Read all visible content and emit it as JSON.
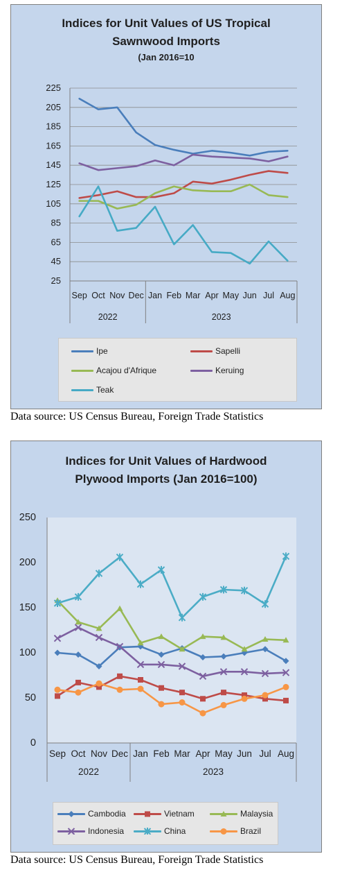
{
  "chart_data": [
    {
      "type": "line",
      "title": "Indices for Unit Values of US Tropical Sawnwood Imports",
      "subtitle": "(Jan 2016=10",
      "categories": [
        "Sep",
        "Oct",
        "Nov",
        "Dec",
        "Jan",
        "Feb",
        "Mar",
        "Apr",
        "May",
        "Jun",
        "Jul",
        "Aug"
      ],
      "year_groups": [
        {
          "label": "2022",
          "count": 4
        },
        {
          "label": "2023",
          "count": 8
        }
      ],
      "ylim": [
        25,
        225
      ],
      "yticks": [
        25,
        45,
        65,
        85,
        105,
        125,
        145,
        165,
        185,
        205,
        225
      ],
      "grid": true,
      "legend_position": "bottom",
      "series": [
        {
          "name": "Ipe",
          "color": "#4a7ebb",
          "values": [
            214,
            203,
            205,
            179,
            166,
            161,
            157,
            160,
            158,
            155,
            159,
            160
          ]
        },
        {
          "name": "Sapelli",
          "color": "#be4b48",
          "values": [
            111,
            114,
            118,
            112,
            112,
            116,
            128,
            126,
            130,
            135,
            139,
            137
          ]
        },
        {
          "name": "Acajou d'Afrique",
          "color": "#98b954",
          "values": [
            108,
            108,
            100,
            104,
            116,
            123,
            119,
            118,
            118,
            125,
            114,
            112
          ]
        },
        {
          "name": "Keruing",
          "color": "#7d60a0",
          "values": [
            147,
            140,
            142,
            144,
            150,
            145,
            156,
            154,
            153,
            152,
            149,
            154
          ]
        },
        {
          "name": "Teak",
          "color": "#46aac5",
          "values": [
            92,
            123,
            77,
            80,
            102,
            63,
            83,
            55,
            54,
            43,
            66,
            46
          ]
        }
      ]
    },
    {
      "type": "line",
      "title": "Indices for Unit Values of Hardwood Plywood Imports (Jan 2016=100)",
      "categories": [
        "Sep",
        "Oct",
        "Nov",
        "Dec",
        "Jan",
        "Feb",
        "Mar",
        "Apr",
        "May",
        "Jun",
        "Jul",
        "Aug"
      ],
      "year_groups": [
        {
          "label": "2022",
          "count": 4
        },
        {
          "label": "2023",
          "count": 8
        }
      ],
      "ylim": [
        0,
        250
      ],
      "yticks": [
        0,
        50,
        100,
        150,
        200,
        250
      ],
      "grid": false,
      "legend_position": "bottom",
      "series": [
        {
          "name": "Cambodia",
          "color": "#4a7ebb",
          "marker": "diamond",
          "values": [
            100,
            98,
            85,
            106,
            107,
            98,
            105,
            95,
            96,
            100,
            104,
            91
          ]
        },
        {
          "name": "Vietnam",
          "color": "#be4b48",
          "marker": "square",
          "values": [
            52,
            67,
            62,
            74,
            70,
            61,
            56,
            49,
            56,
            53,
            49,
            47
          ]
        },
        {
          "name": "Malaysia",
          "color": "#98b954",
          "marker": "triangle",
          "values": [
            158,
            134,
            127,
            149,
            111,
            118,
            104,
            118,
            117,
            104,
            115,
            114
          ]
        },
        {
          "name": "Indonesia",
          "color": "#7d60a0",
          "marker": "x",
          "values": [
            116,
            128,
            117,
            107,
            87,
            87,
            85,
            74,
            79,
            79,
            77,
            78
          ]
        },
        {
          "name": "China",
          "color": "#4bacc6",
          "marker": "star",
          "values": [
            155,
            162,
            188,
            206,
            176,
            192,
            139,
            162,
            170,
            169,
            154,
            207
          ]
        },
        {
          "name": "Brazil",
          "color": "#f79646",
          "marker": "circle",
          "values": [
            59,
            56,
            66,
            59,
            60,
            43,
            45,
            33,
            42,
            49,
            53,
            62
          ]
        }
      ]
    }
  ],
  "sources": {
    "chart1": "Data source: US Census Bureau, Foreign Trade Statistics",
    "chart2": "Data source: US Census Bureau, Foreign Trade Statistics"
  },
  "titles": {
    "chart1_line1": "Indices for Unit Values of US Tropical",
    "chart1_line2": "Sawnwood Imports",
    "chart1_line3": "(Jan 2016=10",
    "chart2_line1": "Indices for Unit Values of Hardwood",
    "chart2_line2": "Plywood Imports (Jan 2016=100)"
  }
}
